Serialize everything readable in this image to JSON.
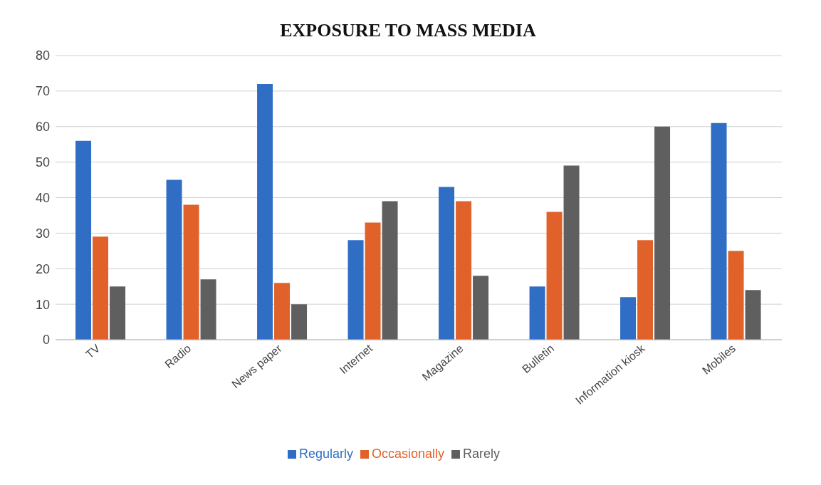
{
  "chart_data": {
    "type": "bar",
    "title": "EXPOSURE TO MASS MEDIA",
    "categories": [
      "TV",
      "Radio",
      "News paper",
      "Internet",
      "Magazine",
      "Bulletin",
      "Information kiosk",
      "Mobiles"
    ],
    "series": [
      {
        "name": "Regularly",
        "color": "#2f6ec4",
        "values": [
          56,
          45,
          72,
          28,
          43,
          15,
          12,
          61
        ]
      },
      {
        "name": "Occasionally",
        "color": "#e0622a",
        "values": [
          29,
          38,
          16,
          33,
          39,
          36,
          28,
          25
        ]
      },
      {
        "name": "Rarely",
        "color": "#5f5f5f",
        "values": [
          15,
          17,
          10,
          39,
          18,
          49,
          60,
          14
        ]
      }
    ],
    "ylim": [
      0,
      80
    ],
    "yticks": [
      0,
      10,
      20,
      30,
      40,
      50,
      60,
      70,
      80
    ],
    "grid": "y",
    "legend": "bottom"
  }
}
